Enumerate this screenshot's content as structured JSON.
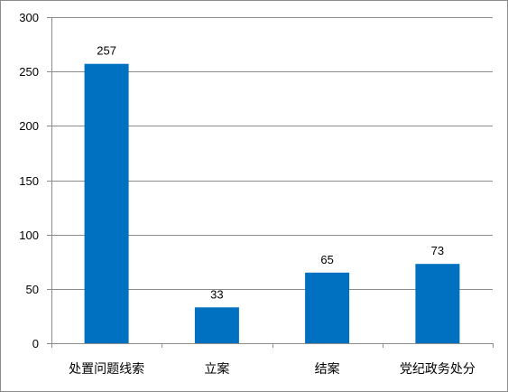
{
  "chart_data": {
    "type": "bar",
    "title": "",
    "xlabel": "",
    "ylabel": "",
    "categories": [
      "处置问题线索",
      "立案",
      "结案",
      "党纪政务处分"
    ],
    "values": [
      257,
      33,
      65,
      73
    ],
    "data_labels": [
      "257",
      "33",
      "65",
      "73"
    ],
    "ylim": [
      0,
      300
    ],
    "yticks": [
      0,
      50,
      100,
      150,
      200,
      250,
      300
    ],
    "grid": true,
    "legend": "none",
    "bar_color": "#0070C0"
  }
}
